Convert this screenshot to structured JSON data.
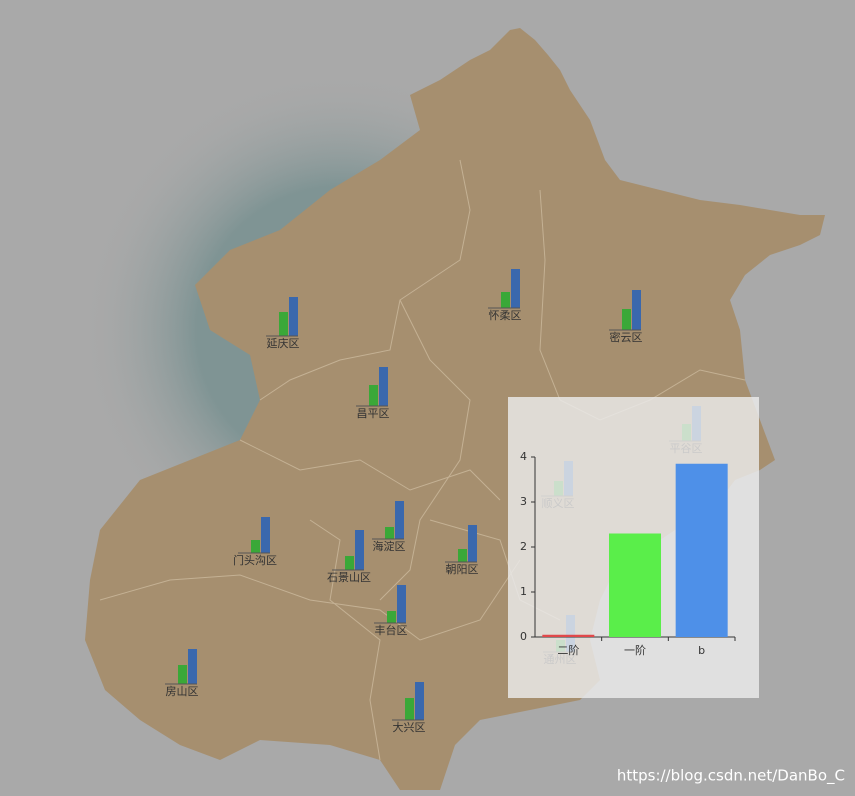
{
  "map": {
    "bar_colors": [
      "#3aa838",
      "#3a68ad"
    ],
    "districts": [
      {
        "name": "延庆区",
        "values": [
          2.4,
          3.9
        ]
      },
      {
        "name": "怀柔区",
        "values": [
          1.6,
          3.9
        ]
      },
      {
        "name": "密云区",
        "values": [
          2.1,
          4.0
        ]
      },
      {
        "name": "昌平区",
        "values": [
          2.1,
          3.9
        ]
      },
      {
        "name": "平谷区",
        "values": [
          1.7,
          3.5
        ]
      },
      {
        "name": "顺义区",
        "values": [
          1.5,
          3.5
        ]
      },
      {
        "name": "海淀区",
        "values": [
          1.2,
          3.8
        ]
      },
      {
        "name": "门头沟区",
        "values": [
          1.3,
          3.6
        ]
      },
      {
        "name": "石景山区",
        "values": [
          1.4,
          4.0
        ]
      },
      {
        "name": "朝阳区",
        "values": [
          1.3,
          3.7
        ]
      },
      {
        "name": "丰台区",
        "values": [
          1.2,
          3.8
        ]
      },
      {
        "name": "通州区",
        "values": [
          1.2,
          3.7
        ]
      },
      {
        "name": "房山区",
        "values": [
          1.9,
          3.5
        ]
      },
      {
        "name": "大兴区",
        "values": [
          2.2,
          3.8
        ]
      }
    ]
  },
  "chart_data": {
    "type": "bar",
    "categories": [
      "二阶",
      "一阶",
      "b"
    ],
    "values": [
      0.05,
      2.3,
      3.85
    ],
    "colors": [
      "#e0484a",
      "#5aee4a",
      "#4e90e8"
    ],
    "ylim": [
      0,
      4
    ],
    "yticks": [
      0,
      1,
      2,
      3,
      4
    ]
  },
  "watermark": "https://blog.csdn.net/DanBo_C"
}
